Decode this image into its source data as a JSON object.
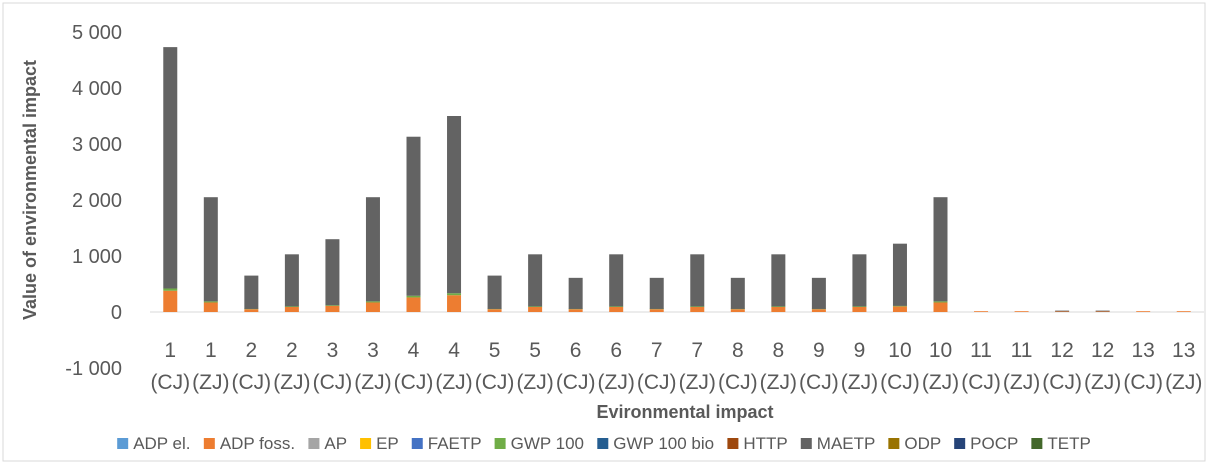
{
  "chart_data": {
    "type": "bar",
    "stacked": true,
    "title": "",
    "xlabel": "Evironmental impact",
    "ylabel": "Value of environmental impact",
    "ylim": [
      -1000,
      5000
    ],
    "yticks": [
      -1000,
      0,
      1000,
      2000,
      3000,
      4000,
      5000
    ],
    "ytick_labels": [
      "-1 000",
      "0",
      "1 000",
      "2 000",
      "3 000",
      "4 000",
      "5 000"
    ],
    "grid": false,
    "legend_position": "bottom",
    "categories": [
      [
        "1",
        "(CJ)"
      ],
      [
        "1",
        "(ZJ)"
      ],
      [
        "2",
        "(CJ)"
      ],
      [
        "2",
        "(ZJ)"
      ],
      [
        "3",
        "(CJ)"
      ],
      [
        "3",
        "(ZJ)"
      ],
      [
        "4",
        "(CJ)"
      ],
      [
        "4",
        "(ZJ)"
      ],
      [
        "5",
        "(CJ)"
      ],
      [
        "5",
        "(ZJ)"
      ],
      [
        "6",
        "(CJ)"
      ],
      [
        "6",
        "(ZJ)"
      ],
      [
        "7",
        "(CJ)"
      ],
      [
        "7",
        "(ZJ)"
      ],
      [
        "8",
        "(CJ)"
      ],
      [
        "8",
        "(ZJ)"
      ],
      [
        "9",
        "(CJ)"
      ],
      [
        "9",
        "(ZJ)"
      ],
      [
        "10",
        "(CJ)"
      ],
      [
        "10",
        "(ZJ)"
      ],
      [
        "11",
        "(CJ)"
      ],
      [
        "11",
        "(ZJ)"
      ],
      [
        "12",
        "(CJ)"
      ],
      [
        "12",
        "(ZJ)"
      ],
      [
        "13",
        "(CJ)"
      ],
      [
        "13",
        "(ZJ)"
      ]
    ],
    "series": [
      {
        "name": "ADP el.",
        "color": "#5B9BD5",
        "values": [
          0,
          0,
          0,
          0,
          0,
          0,
          0,
          0,
          0,
          0,
          0,
          0,
          0,
          0,
          0,
          0,
          0,
          0,
          0,
          0,
          0,
          0,
          0,
          0,
          0,
          0
        ]
      },
      {
        "name": "ADP foss.",
        "color": "#ED7D31",
        "values": [
          380,
          170,
          50,
          90,
          110,
          170,
          260,
          300,
          50,
          90,
          50,
          90,
          50,
          90,
          50,
          90,
          50,
          90,
          100,
          170,
          5,
          5,
          10,
          10,
          5,
          5
        ]
      },
      {
        "name": "AP",
        "color": "#A5A5A5",
        "values": [
          0,
          0,
          0,
          0,
          0,
          0,
          0,
          0,
          0,
          0,
          0,
          0,
          0,
          0,
          0,
          0,
          0,
          0,
          0,
          0,
          0,
          0,
          0,
          0,
          0,
          0
        ]
      },
      {
        "name": "EP",
        "color": "#FFC000",
        "values": [
          0,
          0,
          0,
          0,
          0,
          0,
          0,
          0,
          0,
          0,
          0,
          0,
          0,
          0,
          0,
          0,
          0,
          0,
          0,
          0,
          0,
          0,
          0,
          0,
          0,
          0
        ]
      },
      {
        "name": "FAETP",
        "color": "#4472C4",
        "values": [
          0,
          0,
          0,
          0,
          0,
          0,
          0,
          0,
          0,
          0,
          0,
          0,
          0,
          0,
          0,
          0,
          0,
          0,
          0,
          0,
          0,
          0,
          0,
          0,
          0,
          0
        ]
      },
      {
        "name": "GWP 100",
        "color": "#70AD47",
        "values": [
          40,
          20,
          5,
          10,
          10,
          20,
          30,
          35,
          5,
          10,
          5,
          10,
          5,
          10,
          5,
          10,
          5,
          10,
          10,
          20,
          0,
          0,
          0,
          0,
          0,
          0
        ]
      },
      {
        "name": "GWP 100 bio",
        "color": "#255E91",
        "values": [
          0,
          0,
          0,
          0,
          0,
          0,
          0,
          0,
          0,
          0,
          0,
          0,
          0,
          0,
          0,
          0,
          0,
          0,
          0,
          0,
          0,
          0,
          0,
          0,
          0,
          0
        ]
      },
      {
        "name": "HTTP",
        "color": "#9E480E",
        "values": [
          0,
          0,
          0,
          0,
          0,
          0,
          0,
          0,
          0,
          0,
          0,
          0,
          0,
          0,
          0,
          0,
          0,
          0,
          0,
          0,
          0,
          0,
          0,
          0,
          0,
          0
        ]
      },
      {
        "name": "MAETP",
        "color": "#636363",
        "values": [
          4310,
          1860,
          595,
          930,
          1180,
          1860,
          2840,
          3165,
          595,
          930,
          555,
          930,
          555,
          930,
          555,
          930,
          555,
          930,
          1110,
          1860,
          0,
          0,
          15,
          15,
          0,
          0
        ]
      },
      {
        "name": "ODP",
        "color": "#997300",
        "values": [
          0,
          0,
          0,
          0,
          0,
          0,
          0,
          0,
          0,
          0,
          0,
          0,
          0,
          0,
          0,
          0,
          0,
          0,
          0,
          0,
          0,
          0,
          0,
          0,
          0,
          0
        ]
      },
      {
        "name": "POCP",
        "color": "#264478",
        "values": [
          0,
          0,
          0,
          0,
          0,
          0,
          0,
          0,
          0,
          0,
          0,
          0,
          0,
          0,
          0,
          0,
          0,
          0,
          0,
          0,
          0,
          0,
          0,
          0,
          0,
          0
        ]
      },
      {
        "name": "TETP",
        "color": "#43682B",
        "values": [
          0,
          0,
          0,
          0,
          0,
          0,
          0,
          0,
          0,
          0,
          0,
          0,
          0,
          0,
          0,
          0,
          0,
          0,
          0,
          0,
          0,
          0,
          0,
          0,
          0,
          0
        ]
      }
    ]
  }
}
